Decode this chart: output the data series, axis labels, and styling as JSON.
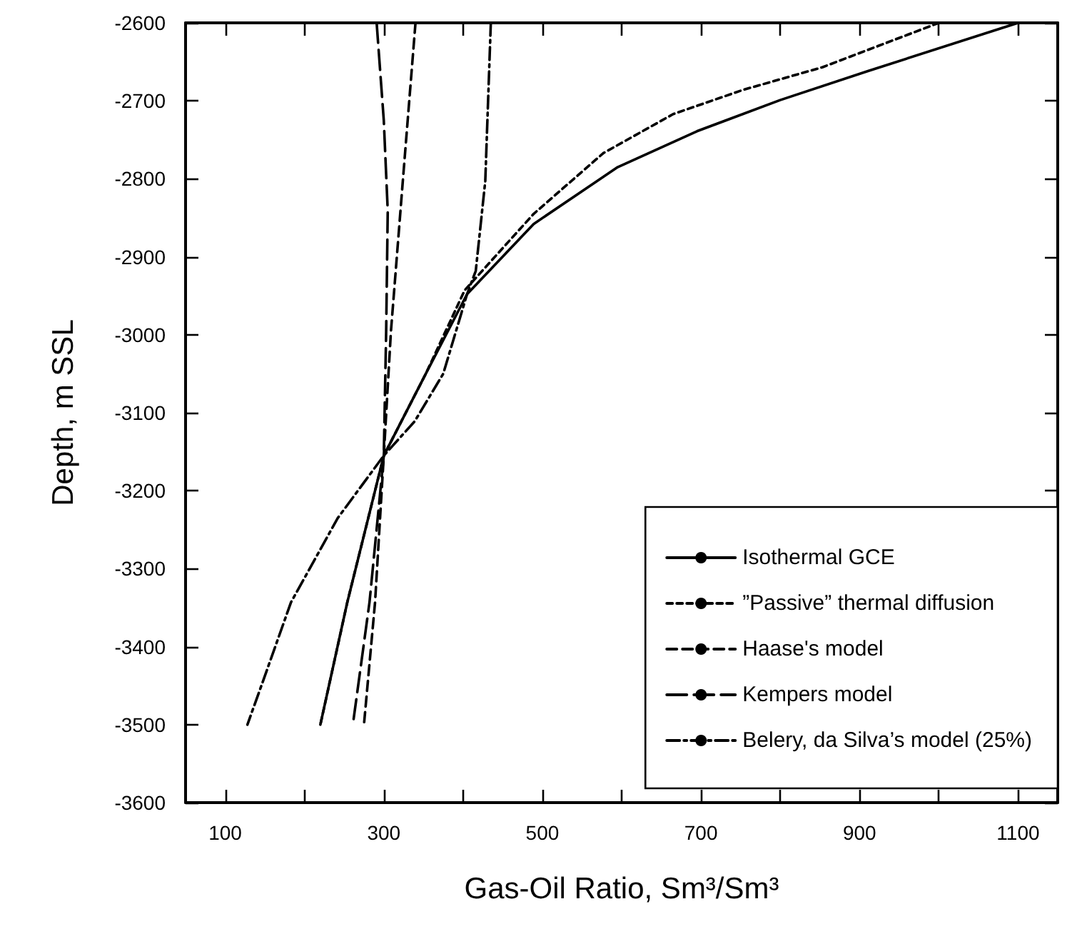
{
  "chart_data": {
    "type": "line",
    "xlabel": "Gas-Oil Ratio, Sm³/Sm³",
    "ylabel": "Depth, m SSL",
    "xlim": [
      50,
      1150
    ],
    "xticks": [
      100,
      {
        "value": 200,
        "label": null
      },
      300,
      {
        "value": 400,
        "label": null
      },
      500,
      {
        "value": 600,
        "label": null
      },
      700,
      {
        "value": 800,
        "label": null
      },
      900,
      {
        "value": 1000,
        "label": null
      },
      1100
    ],
    "ylim": [
      -3600,
      -2600
    ],
    "yticks": [
      -3600,
      -3500,
      -3400,
      -3300,
      -3200,
      -3100,
      -3000,
      -2900,
      -2800,
      -2700,
      -2600
    ],
    "grid": false,
    "legend": "bottom right",
    "marker": "none",
    "series": [
      {
        "name": "Isothermal GCE",
        "color": "#000000",
        "line_style": "solid",
        "x": [
          1100,
          910,
          800,
          695,
          595,
          489,
          405,
          353,
          300,
          254,
          220
        ],
        "values": [
          -2600,
          -2662,
          -2699,
          -2739,
          -2785,
          -2858,
          -2948,
          -3050,
          -3155,
          -3343,
          -3500
        ]
      },
      {
        "name": "”Passive” thermal diffusion",
        "color": "#000000",
        "line_style": "dashed",
        "x": [
          1000,
          853,
          753,
          665,
          577,
          489,
          402,
          353,
          300,
          254,
          220
        ],
        "values": [
          -2600,
          -2657,
          -2686,
          -2717,
          -2767,
          -2845,
          -2943,
          -3050,
          -3155,
          -3343,
          -3500
        ]
      },
      {
        "name": "Haase's model",
        "color": "#000000",
        "line_style": "dashed",
        "x": [
          340,
          324,
          309,
          300,
          289,
          275
        ],
        "values": [
          -2600,
          -2803,
          -2996,
          -3155,
          -3343,
          -3500
        ]
      },
      {
        "name": "Kempers model",
        "color": "#000000",
        "line_style": "dashed",
        "x": [
          291,
          300,
          305,
          303,
          300,
          282,
          261
        ],
        "values": [
          -2600,
          -2725,
          -2841,
          -2996,
          -3155,
          -3343,
          -3500
        ]
      },
      {
        "name": "Belery, da Silva’s model (25%)",
        "color": "#000000",
        "line_style": "dashdot",
        "x": [
          435,
          428,
          416,
          405,
          375,
          339,
          300,
          242,
          183,
          146,
          128
        ],
        "values": [
          -2600,
          -2803,
          -2918,
          -2948,
          -3050,
          -3111,
          -3155,
          -3235,
          -3343,
          -3449,
          -3500
        ]
      }
    ]
  }
}
